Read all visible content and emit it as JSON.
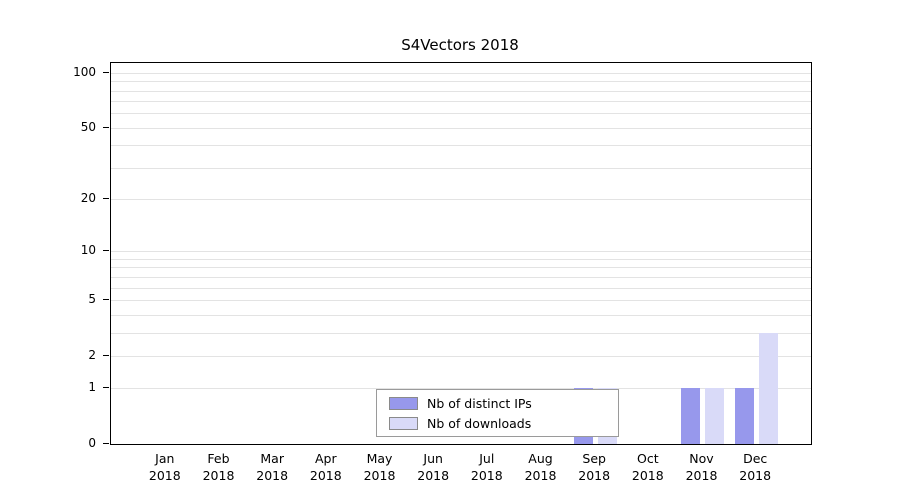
{
  "title": "S4Vectors 2018",
  "colors": {
    "distinct_ips": "#9798ec",
    "downloads": "#d9daf8",
    "grid": "#e3e3e3",
    "axis": "#000000",
    "legend_border": "#9a9a9a"
  },
  "chart_data": {
    "type": "bar",
    "title": "S4Vectors 2018",
    "categories": [
      "Jan",
      "Feb",
      "Mar",
      "Apr",
      "May",
      "Jun",
      "Jul",
      "Aug",
      "Sep",
      "Oct",
      "Nov",
      "Dec"
    ],
    "year": "2018",
    "series": [
      {
        "name": "Nb of distinct IPs",
        "color": "#9798ec",
        "values": [
          0,
          0,
          0,
          0,
          0,
          0,
          0,
          0,
          1,
          0,
          1,
          1
        ]
      },
      {
        "name": "Nb of downloads",
        "color": "#d9daf8",
        "values": [
          0,
          0,
          0,
          0,
          0,
          0,
          0,
          0,
          1,
          0,
          1,
          3
        ]
      }
    ],
    "y_ticks": [
      0,
      1,
      2,
      5,
      10,
      20,
      50,
      100
    ],
    "minor_gridlines": [
      1,
      2,
      3,
      4,
      5,
      6,
      7,
      8,
      9,
      10,
      20,
      30,
      40,
      50,
      60,
      70,
      80,
      90,
      100
    ],
    "scale": "log1p",
    "ylim": [
      0,
      113
    ],
    "grid": true,
    "legend_position": "bottom-center"
  }
}
